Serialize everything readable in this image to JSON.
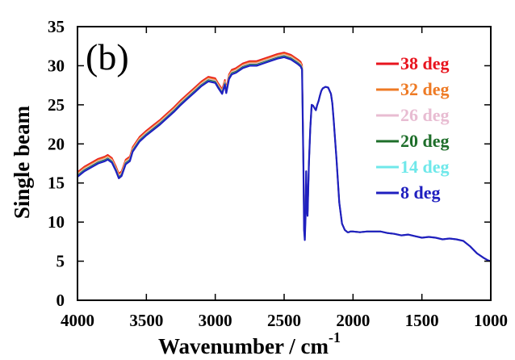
{
  "chart_data": {
    "type": "line",
    "panel_label": "(b)",
    "xlabel": "Wavenumber / cm",
    "xlabel_superscript": "-1",
    "ylabel": "Single beam",
    "xlim": [
      4000,
      1000
    ],
    "ylim": [
      0,
      35
    ],
    "x_ticks": [
      4000,
      3500,
      3000,
      2500,
      2000,
      1500,
      1000
    ],
    "y_ticks": [
      0,
      5,
      10,
      15,
      20,
      25,
      30,
      35
    ],
    "x_tick_labels": [
      "4000",
      "3500",
      "3000",
      "2500",
      "2000",
      "1500",
      "1000"
    ],
    "y_tick_labels": [
      "0",
      "5",
      "10",
      "15",
      "20",
      "25",
      "30",
      "35"
    ],
    "legend_position": "right",
    "series": [
      {
        "name": "38 deg",
        "color": "#e8141e",
        "offset": 0.6
      },
      {
        "name": "32 deg",
        "color": "#ee7a24",
        "offset": 0.45
      },
      {
        "name": "26 deg",
        "color": "#e8bcd2",
        "offset": 0.3
      },
      {
        "name": "20 deg",
        "color": "#1e6e2a",
        "offset": 0.15
      },
      {
        "name": "14 deg",
        "color": "#6fe8ea",
        "offset": 0.05
      },
      {
        "name": "8 deg",
        "color": "#1f1fbf",
        "offset": 0.0
      }
    ],
    "base_x": [
      4000,
      3950,
      3900,
      3850,
      3800,
      3780,
      3750,
      3720,
      3700,
      3680,
      3650,
      3620,
      3600,
      3550,
      3500,
      3450,
      3400,
      3350,
      3300,
      3250,
      3200,
      3150,
      3100,
      3050,
      3000,
      2980,
      2950,
      2930,
      2920,
      2900,
      2880,
      2850,
      2800,
      2750,
      2700,
      2650,
      2600,
      2550,
      2500,
      2450,
      2400,
      2380,
      2370,
      2360,
      2355,
      2350,
      2345,
      2340,
      2335,
      2330,
      2320,
      2310,
      2300,
      2290,
      2280,
      2270,
      2260,
      2250,
      2240,
      2230,
      2220,
      2200,
      2180,
      2160,
      2150,
      2140,
      2120,
      2100,
      2080,
      2060,
      2040,
      2030,
      2020,
      2000,
      1950,
      1900,
      1850,
      1800,
      1750,
      1700,
      1650,
      1600,
      1550,
      1500,
      1450,
      1400,
      1350,
      1300,
      1250,
      1200,
      1150,
      1100,
      1050,
      1020,
      1000
    ],
    "base_y": [
      15.8,
      16.5,
      17.0,
      17.5,
      17.8,
      18.0,
      17.6,
      16.5,
      15.6,
      15.9,
      17.4,
      17.8,
      19.0,
      20.3,
      21.1,
      21.8,
      22.5,
      23.3,
      24.1,
      25.0,
      25.8,
      26.6,
      27.4,
      28.0,
      27.8,
      27.2,
      26.4,
      27.6,
      26.5,
      28.3,
      28.9,
      29.1,
      29.7,
      30.0,
      30.0,
      30.3,
      30.6,
      30.9,
      31.1,
      30.8,
      30.2,
      29.9,
      29.5,
      17.0,
      9.0,
      7.7,
      10.5,
      16.5,
      12.0,
      10.8,
      17.5,
      22.0,
      25.0,
      24.9,
      24.6,
      24.3,
      25.0,
      25.5,
      26.2,
      26.8,
      27.1,
      27.3,
      27.2,
      26.4,
      25.2,
      23.0,
      18.0,
      12.5,
      9.8,
      9.0,
      8.7,
      8.7,
      8.8,
      8.8,
      8.7,
      8.8,
      8.8,
      8.8,
      8.6,
      8.5,
      8.3,
      8.4,
      8.2,
      8.0,
      8.1,
      8.0,
      7.8,
      7.9,
      7.8,
      7.6,
      6.9,
      6.0,
      5.4,
      5.1,
      5.0
    ]
  }
}
